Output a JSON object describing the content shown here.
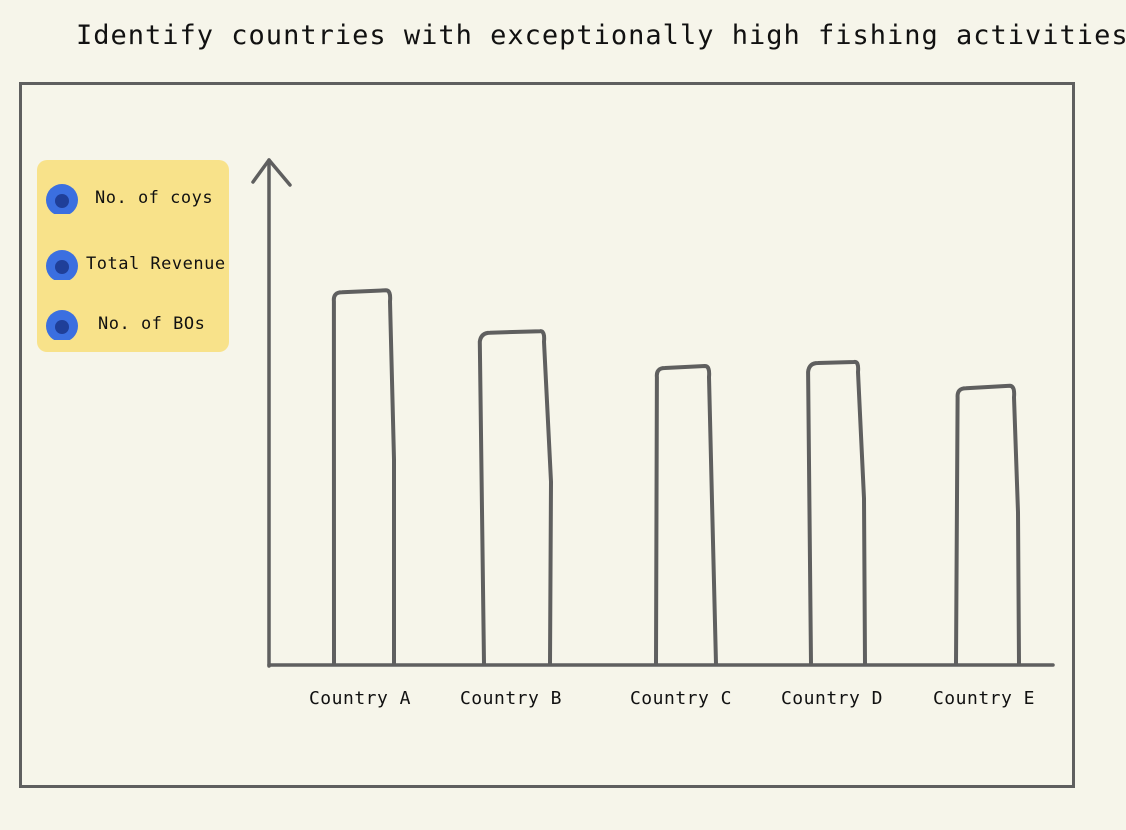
{
  "page": {
    "title": "Identify countries with exceptionally high fishing activities"
  },
  "legend": {
    "items": [
      {
        "label": "No. of coys",
        "icon": "blue-dot-icon"
      },
      {
        "label": "Total Revenue",
        "icon": "blue-dot-icon"
      },
      {
        "label": "No. of BOs",
        "icon": "blue-dot-icon"
      }
    ],
    "background_color": "#f8e28a",
    "swatch_color": "#3b6fe0",
    "swatch_inner_color": "#1f3f99",
    "placement": "left"
  },
  "chart_data": {
    "type": "bar",
    "categories": [
      "Country A",
      "Country B",
      "Country C",
      "Country D",
      "Country E"
    ],
    "values": [
      74,
      66,
      59,
      60,
      55
    ],
    "ylim": [
      0,
      100
    ],
    "grid": false,
    "style": "hand-drawn sketch",
    "bar_outline_color": "#5f5f5f"
  }
}
